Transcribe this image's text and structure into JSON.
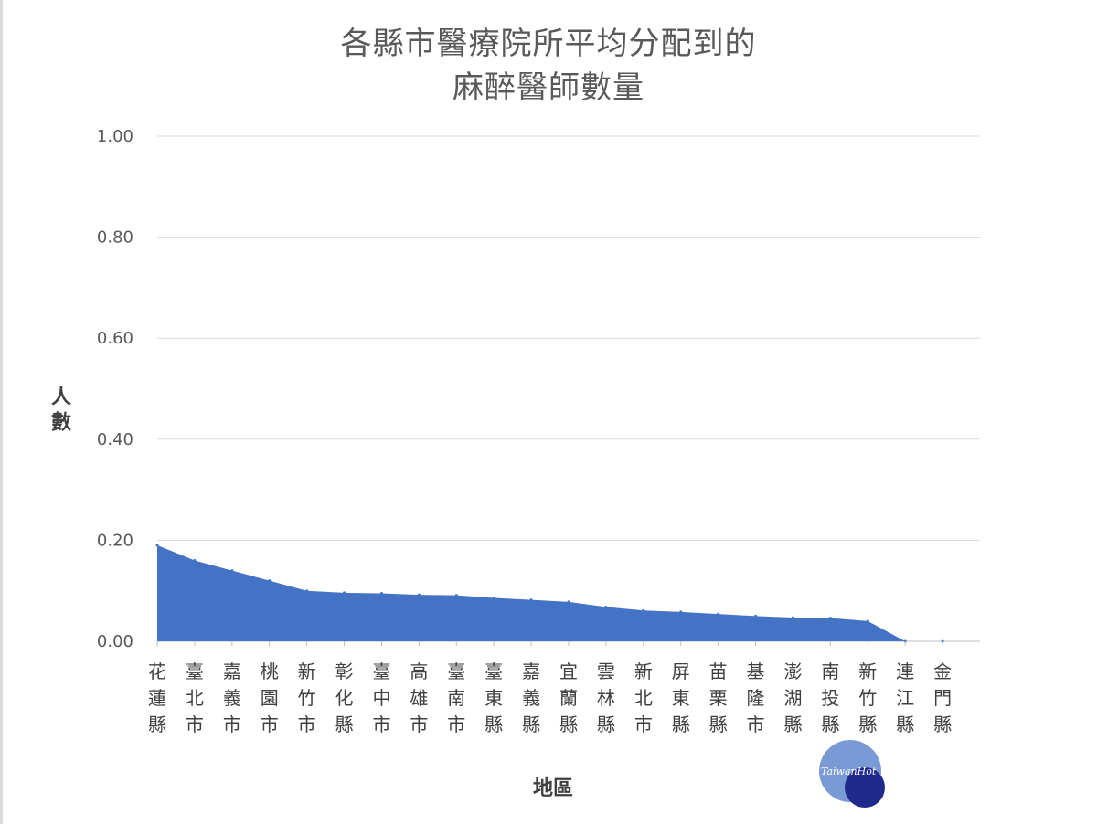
{
  "chart_data": {
    "type": "area",
    "title": [
      "各縣市醫療院所平均分配到的",
      "麻醉醫師數量"
    ],
    "xlabel": "地區",
    "ylabel": "人數",
    "ylim": [
      0,
      1.0
    ],
    "yticks": [
      "0.00",
      "0.20",
      "0.40",
      "0.60",
      "0.80",
      "1.00"
    ],
    "grid": true,
    "color": "#4472c4",
    "categories": [
      "花蓮縣",
      "臺北市",
      "嘉義市",
      "桃園市",
      "新竹市",
      "彰化縣",
      "臺中市",
      "高雄市",
      "臺南市",
      "臺東縣",
      "嘉義縣",
      "宜蘭縣",
      "雲林縣",
      "新北市",
      "屏東縣",
      "苗栗縣",
      "基隆市",
      "澎湖縣",
      "南投縣",
      "新竹縣",
      "連江縣",
      "金門縣"
    ],
    "values": [
      0.19,
      0.16,
      0.14,
      0.12,
      0.1,
      0.096,
      0.095,
      0.092,
      0.091,
      0.086,
      0.082,
      0.078,
      0.068,
      0.061,
      0.058,
      0.054,
      0.05,
      0.047,
      0.046,
      0.04,
      0.0,
      0.0
    ]
  },
  "watermark": {
    "text": "TaiwanHot"
  }
}
